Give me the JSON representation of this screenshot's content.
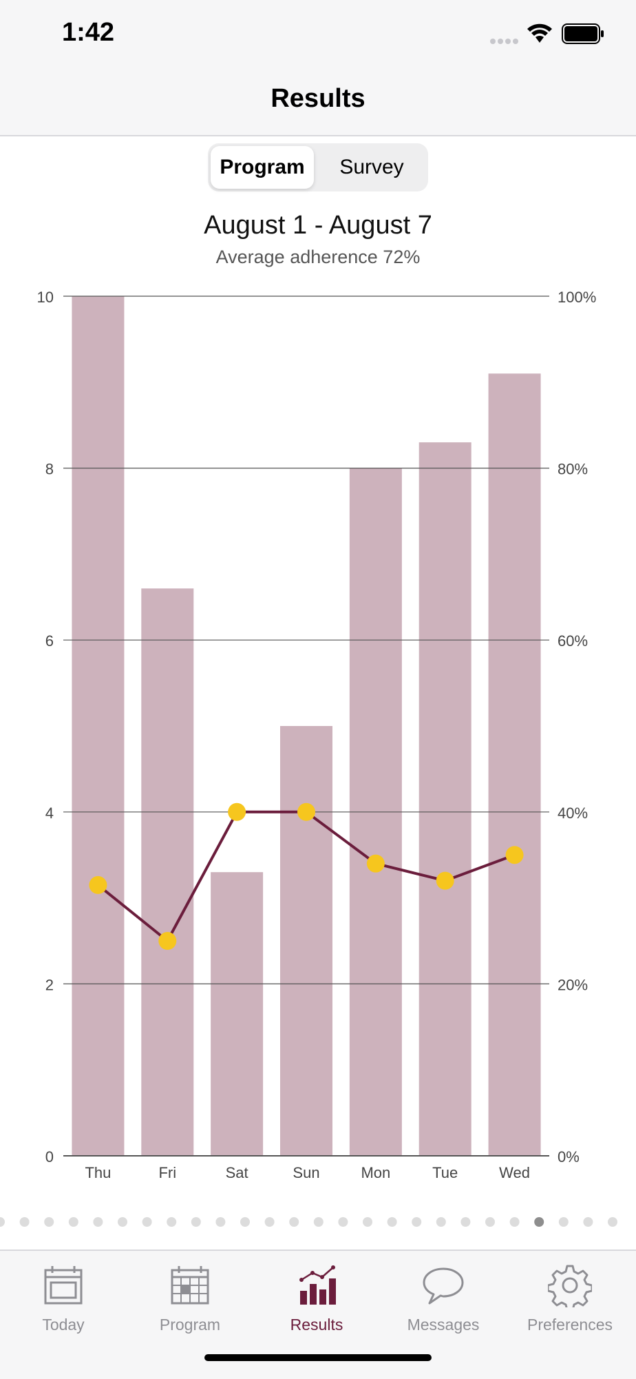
{
  "status_bar": {
    "time": "1:42",
    "icons": [
      "signal-dots-icon",
      "wifi-icon",
      "battery-icon"
    ]
  },
  "nav": {
    "title": "Results"
  },
  "segmented_control": {
    "options": [
      "Program",
      "Survey"
    ],
    "selected": "Program"
  },
  "summary": {
    "date_range": "August 1 - August 7",
    "average_adherence": "Average adherence 72%"
  },
  "colors": {
    "bar": "#cdb2bc",
    "line": "#6b1d3c",
    "point": "#f6c61e",
    "active_tab": "#6b1d3c",
    "inactive_tab": "#8e8e93"
  },
  "chart_data": {
    "type": "bar",
    "categories": [
      "Thu",
      "Fri",
      "Sat",
      "Sun",
      "Mon",
      "Tue",
      "Wed"
    ],
    "series": [
      {
        "type": "bar",
        "axis": "left",
        "values": [
          10,
          6.6,
          3.3,
          5,
          8,
          8.3,
          9.1
        ]
      },
      {
        "type": "line",
        "axis": "right",
        "values": [
          31.5,
          25,
          40,
          40,
          34,
          32,
          35
        ]
      }
    ],
    "y_left": {
      "range": [
        0,
        10
      ],
      "ticks": [
        "0",
        "2",
        "4",
        "6",
        "8",
        "10"
      ]
    },
    "y_right": {
      "range": [
        0,
        100
      ],
      "ticks": [
        "0%",
        "20%",
        "40%",
        "60%",
        "80%",
        "100%"
      ]
    },
    "grid": true
  },
  "pagination": {
    "total": 26,
    "current": 22
  },
  "tab_bar": {
    "items": [
      {
        "label": "Today",
        "icon": "calendar-today-icon",
        "active": false
      },
      {
        "label": "Program",
        "icon": "calendar-grid-icon",
        "active": false
      },
      {
        "label": "Results",
        "icon": "chart-icon",
        "active": true
      },
      {
        "label": "Messages",
        "icon": "speech-bubble-icon",
        "active": false
      },
      {
        "label": "Preferences",
        "icon": "gear-icon",
        "active": false
      }
    ]
  }
}
